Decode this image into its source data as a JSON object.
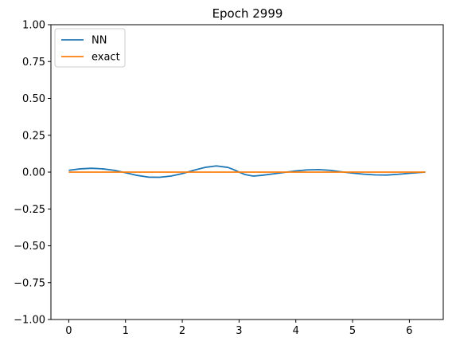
{
  "chart_data": {
    "type": "line",
    "title": "Epoch 2999",
    "xlabel": "",
    "ylabel": "",
    "xlim": [
      -0.314,
      6.597
    ],
    "ylim": [
      -1.0,
      1.0
    ],
    "xticks": [
      0,
      1,
      2,
      3,
      4,
      5,
      6
    ],
    "xtick_labels": [
      "0",
      "1",
      "2",
      "3",
      "4",
      "5",
      "6"
    ],
    "yticks": [
      -1.0,
      -0.75,
      -0.5,
      -0.25,
      0.0,
      0.25,
      0.5,
      0.75,
      1.0
    ],
    "ytick_labels": [
      "−1.00",
      "−0.75",
      "−0.50",
      "−0.25",
      "0.00",
      "0.25",
      "0.50",
      "0.75",
      "1.00"
    ],
    "grid": false,
    "legend_position": "upper-left",
    "series": [
      {
        "name": "NN",
        "color": "#1f77b4",
        "x": [
          0.0,
          0.2,
          0.4,
          0.6,
          0.8,
          1.0,
          1.2,
          1.4,
          1.6,
          1.8,
          2.0,
          2.2,
          2.4,
          2.6,
          2.8,
          2.9,
          3.0,
          3.1,
          3.25,
          3.4,
          3.6,
          3.8,
          4.0,
          4.2,
          4.4,
          4.6,
          4.8,
          5.0,
          5.2,
          5.4,
          5.6,
          5.8,
          6.0,
          6.283
        ],
        "y": [
          0.012,
          0.022,
          0.026,
          0.022,
          0.012,
          -0.004,
          -0.022,
          -0.034,
          -0.035,
          -0.027,
          -0.01,
          0.012,
          0.032,
          0.042,
          0.032,
          0.018,
          0.0,
          -0.016,
          -0.027,
          -0.022,
          -0.012,
          -0.002,
          0.008,
          0.015,
          0.017,
          0.012,
          0.002,
          -0.007,
          -0.014,
          -0.019,
          -0.02,
          -0.015,
          -0.008,
          0.0
        ]
      },
      {
        "name": "exact",
        "color": "#ff7f0e",
        "x": [
          0.0,
          6.283
        ],
        "y": [
          0.0,
          0.0
        ]
      }
    ]
  }
}
